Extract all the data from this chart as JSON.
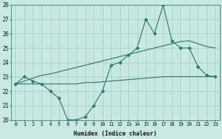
{
  "x": [
    0,
    1,
    2,
    3,
    4,
    5,
    6,
    7,
    8,
    9,
    10,
    11,
    12,
    13,
    14,
    15,
    16,
    17,
    18,
    19,
    20,
    21,
    22,
    23
  ],
  "y_main": [
    22.5,
    23.0,
    22.7,
    22.5,
    22.0,
    21.5,
    20.0,
    20.0,
    20.2,
    21.0,
    22.0,
    23.8,
    24.0,
    24.5,
    25.0,
    27.0,
    26.0,
    28.0,
    25.5,
    25.0,
    25.0,
    23.7,
    23.1,
    23.0
  ],
  "y_upper": [
    22.5,
    22.7,
    22.9,
    23.1,
    23.2,
    23.35,
    23.5,
    23.65,
    23.8,
    23.95,
    24.1,
    24.25,
    24.4,
    24.55,
    24.7,
    24.85,
    25.0,
    25.15,
    25.3,
    25.45,
    25.5,
    25.3,
    25.1,
    25.0
  ],
  "y_lower": [
    22.5,
    22.5,
    22.5,
    22.5,
    22.5,
    22.5,
    22.5,
    22.5,
    22.6,
    22.6,
    22.65,
    22.7,
    22.75,
    22.8,
    22.85,
    22.9,
    22.95,
    23.0,
    23.0,
    23.0,
    23.0,
    23.0,
    23.0,
    23.0
  ],
  "color": "#2d7d6e",
  "bg_color": "#c8e8e4",
  "grid_color": "#b0d8d4",
  "ylim": [
    20,
    28
  ],
  "yticks": [
    20,
    21,
    22,
    23,
    24,
    25,
    26,
    27,
    28
  ],
  "xlim": [
    -0.5,
    23.5
  ],
  "xlabel": "Humidex (Indice chaleur)",
  "xtick_labels": [
    "0",
    "1",
    "2",
    "3",
    "4",
    "5",
    "6",
    "7",
    "8",
    "9",
    "10",
    "11",
    "12",
    "13",
    "14",
    "15",
    "16",
    "17",
    "18",
    "19",
    "20",
    "21",
    "22",
    "23"
  ]
}
